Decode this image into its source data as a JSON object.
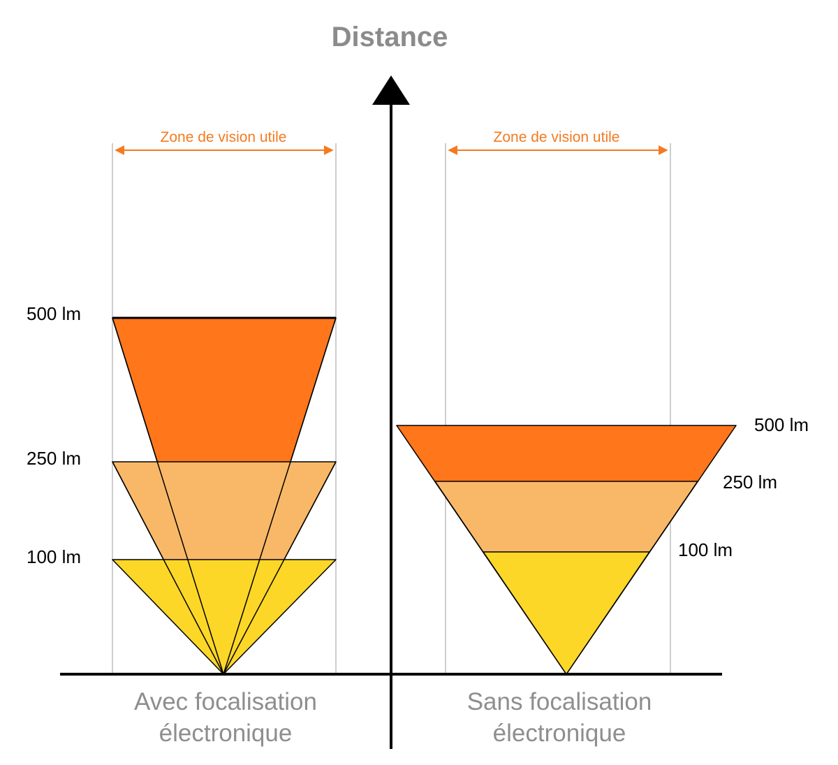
{
  "title": "Distance",
  "colors": {
    "orange": "#FF761B",
    "light_orange": "#F9B867",
    "yellow": "#FDD728",
    "accent": "#F47A20",
    "title_gray": "#8B8B8B",
    "caption_gray": "#8E8E8E",
    "guide_gray": "#BDBDBD"
  },
  "left_panel": {
    "zone_label": "Zone de vision utile",
    "levels": [
      "500 lm",
      "250 lm",
      "100 lm"
    ],
    "caption_line1": "Avec focalisation",
    "caption_line2": "électronique"
  },
  "right_panel": {
    "zone_label": "Zone de vision utile",
    "levels": [
      "500 lm",
      "250 lm",
      "100 lm"
    ],
    "caption_line1": "Sans focalisation",
    "caption_line2": "électronique"
  }
}
